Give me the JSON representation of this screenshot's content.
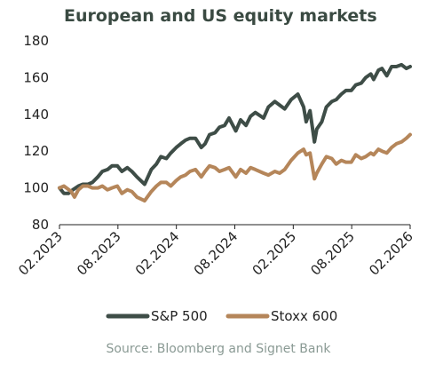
{
  "chart_data": {
    "type": "line",
    "title": "European and US equity markets",
    "xlabel": "",
    "ylabel": "",
    "ylim": [
      80,
      180
    ],
    "yticks": [
      80,
      100,
      120,
      140,
      160,
      180
    ],
    "xticks": [
      "02.2023",
      "08.2023",
      "02.2024",
      "08.2024",
      "02.2025",
      "08.2025",
      "02.2026"
    ],
    "grid": false,
    "legend_position": "bottom",
    "series": [
      {
        "name": "S&P 500",
        "color": "#3e4d47",
        "points": [
          [
            "2023-02-01",
            100
          ],
          [
            "2023-02-15",
            97
          ],
          [
            "2023-03-01",
            97
          ],
          [
            "2023-03-15",
            99
          ],
          [
            "2023-04-01",
            101
          ],
          [
            "2023-04-15",
            102
          ],
          [
            "2023-05-01",
            102
          ],
          [
            "2023-05-15",
            103
          ],
          [
            "2023-06-01",
            106
          ],
          [
            "2023-06-15",
            109
          ],
          [
            "2023-07-01",
            110
          ],
          [
            "2023-07-15",
            112
          ],
          [
            "2023-08-01",
            112
          ],
          [
            "2023-08-15",
            109
          ],
          [
            "2023-09-01",
            111
          ],
          [
            "2023-09-15",
            109
          ],
          [
            "2023-10-01",
            106
          ],
          [
            "2023-10-25",
            102
          ],
          [
            "2023-11-15",
            110
          ],
          [
            "2023-12-01",
            113
          ],
          [
            "2023-12-15",
            117
          ],
          [
            "2024-01-01",
            116
          ],
          [
            "2024-01-15",
            119
          ],
          [
            "2024-02-01",
            122
          ],
          [
            "2024-02-15",
            124
          ],
          [
            "2024-03-01",
            126
          ],
          [
            "2024-03-15",
            127
          ],
          [
            "2024-04-01",
            127
          ],
          [
            "2024-04-19",
            122
          ],
          [
            "2024-05-01",
            124
          ],
          [
            "2024-05-15",
            129
          ],
          [
            "2024-06-01",
            130
          ],
          [
            "2024-06-15",
            133
          ],
          [
            "2024-07-01",
            134
          ],
          [
            "2024-07-15",
            138
          ],
          [
            "2024-08-05",
            131
          ],
          [
            "2024-08-20",
            137
          ],
          [
            "2024-09-06",
            134
          ],
          [
            "2024-09-20",
            139
          ],
          [
            "2024-10-05",
            141
          ],
          [
            "2024-10-31",
            138
          ],
          [
            "2024-11-15",
            144
          ],
          [
            "2024-12-05",
            147
          ],
          [
            "2024-12-20",
            145
          ],
          [
            "2025-01-05",
            143
          ],
          [
            "2025-01-25",
            148
          ],
          [
            "2025-02-15",
            151
          ],
          [
            "2025-03-05",
            144
          ],
          [
            "2025-03-13",
            136
          ],
          [
            "2025-03-25",
            142
          ],
          [
            "2025-04-08",
            125
          ],
          [
            "2025-04-15",
            132
          ],
          [
            "2025-05-01",
            136
          ],
          [
            "2025-05-15",
            144
          ],
          [
            "2025-06-01",
            147
          ],
          [
            "2025-06-15",
            148
          ],
          [
            "2025-07-01",
            151
          ],
          [
            "2025-07-15",
            153
          ],
          [
            "2025-08-01",
            153
          ],
          [
            "2025-08-15",
            156
          ],
          [
            "2025-09-01",
            157
          ],
          [
            "2025-09-15",
            160
          ],
          [
            "2025-10-01",
            162
          ],
          [
            "2025-10-10",
            159
          ],
          [
            "2025-10-25",
            164
          ],
          [
            "2025-11-05",
            165
          ],
          [
            "2025-11-20",
            161
          ],
          [
            "2025-12-05",
            166
          ],
          [
            "2025-12-20",
            166
          ],
          [
            "2026-01-05",
            167
          ],
          [
            "2026-01-20",
            165
          ],
          [
            "2026-02-01",
            166
          ]
        ]
      },
      {
        "name": "Stoxx 600",
        "color": "#b5865a",
        "points": [
          [
            "2023-02-01",
            100
          ],
          [
            "2023-02-15",
            101
          ],
          [
            "2023-03-10",
            98
          ],
          [
            "2023-03-20",
            95
          ],
          [
            "2023-04-01",
            99
          ],
          [
            "2023-04-15",
            101
          ],
          [
            "2023-05-01",
            101
          ],
          [
            "2023-05-15",
            100
          ],
          [
            "2023-06-01",
            100
          ],
          [
            "2023-06-15",
            101
          ],
          [
            "2023-07-01",
            99
          ],
          [
            "2023-07-15",
            100
          ],
          [
            "2023-08-01",
            101
          ],
          [
            "2023-08-15",
            97
          ],
          [
            "2023-09-01",
            99
          ],
          [
            "2023-09-15",
            98
          ],
          [
            "2023-10-01",
            95
          ],
          [
            "2023-10-25",
            93
          ],
          [
            "2023-11-15",
            98
          ],
          [
            "2023-12-01",
            101
          ],
          [
            "2023-12-15",
            103
          ],
          [
            "2024-01-01",
            103
          ],
          [
            "2024-01-15",
            101
          ],
          [
            "2024-02-01",
            104
          ],
          [
            "2024-02-15",
            106
          ],
          [
            "2024-03-01",
            107
          ],
          [
            "2024-03-15",
            109
          ],
          [
            "2024-04-01",
            110
          ],
          [
            "2024-04-19",
            106
          ],
          [
            "2024-05-01",
            109
          ],
          [
            "2024-05-15",
            112
          ],
          [
            "2024-06-01",
            111
          ],
          [
            "2024-06-15",
            109
          ],
          [
            "2024-07-01",
            110
          ],
          [
            "2024-07-15",
            111
          ],
          [
            "2024-08-05",
            106
          ],
          [
            "2024-08-20",
            110
          ],
          [
            "2024-09-06",
            108
          ],
          [
            "2024-09-20",
            111
          ],
          [
            "2024-10-05",
            110
          ],
          [
            "2024-10-31",
            108
          ],
          [
            "2024-11-15",
            107
          ],
          [
            "2024-12-05",
            109
          ],
          [
            "2024-12-20",
            108
          ],
          [
            "2025-01-05",
            110
          ],
          [
            "2025-01-25",
            115
          ],
          [
            "2025-02-15",
            119
          ],
          [
            "2025-03-05",
            121
          ],
          [
            "2025-03-13",
            118
          ],
          [
            "2025-03-25",
            119
          ],
          [
            "2025-04-08",
            105
          ],
          [
            "2025-04-15",
            108
          ],
          [
            "2025-05-01",
            113
          ],
          [
            "2025-05-15",
            117
          ],
          [
            "2025-06-01",
            116
          ],
          [
            "2025-06-15",
            113
          ],
          [
            "2025-07-01",
            115
          ],
          [
            "2025-07-15",
            114
          ],
          [
            "2025-08-01",
            114
          ],
          [
            "2025-08-15",
            118
          ],
          [
            "2025-09-01",
            116
          ],
          [
            "2025-09-15",
            117
          ],
          [
            "2025-10-01",
            119
          ],
          [
            "2025-10-10",
            118
          ],
          [
            "2025-10-25",
            121
          ],
          [
            "2025-11-05",
            120
          ],
          [
            "2025-11-20",
            119
          ],
          [
            "2025-12-05",
            122
          ],
          [
            "2025-12-20",
            124
          ],
          [
            "2026-01-05",
            125
          ],
          [
            "2026-01-20",
            127
          ],
          [
            "2026-02-01",
            129
          ]
        ]
      }
    ],
    "source": "Source: Bloomberg and Signet Bank"
  }
}
